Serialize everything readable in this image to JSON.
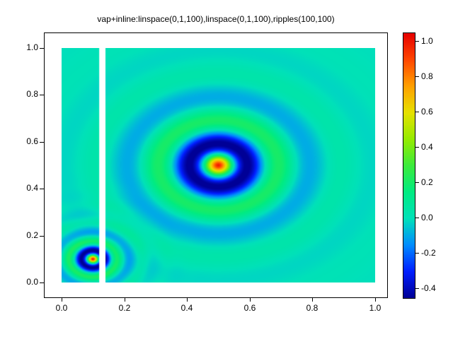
{
  "chart_data": {
    "type": "heatmap",
    "title": "vap+inline:linspace(0,1,100),linspace(0,1,100),ripples(100,100)",
    "x_label": "",
    "y_label": "",
    "x_range": [
      0,
      1
    ],
    "y_range": [
      0,
      1
    ],
    "grid_size": [
      100,
      100
    ],
    "x_tick_labels": [
      "0.0",
      "0.2",
      "0.4",
      "0.6",
      "0.8",
      "1.0"
    ],
    "y_tick_labels": [
      "0.0",
      "0.2",
      "0.4",
      "0.6",
      "0.8",
      "1.0"
    ],
    "colorbar_tick_labels": [
      "1.0",
      "0.8",
      "0.6",
      "0.4",
      "0.2",
      "0.0",
      "-0.2",
      "-0.4"
    ],
    "z_min": -0.45,
    "z_max": 1.05,
    "background_value": 0.0,
    "function": "z(x,y) = sum_i amplitude_i * cos(2*pi*r_i/wavelength_i) * exp(-r_i/decay_i), r_i = dist((x,y),(cx_i,cy_i))",
    "ripples": [
      {
        "cx": 0.5,
        "cy": 0.5,
        "amplitude": 1.0,
        "wavelength": 0.2,
        "decay": 0.125
      },
      {
        "cx": 0.1,
        "cy": 0.1,
        "amplitude": 1.0,
        "wavelength": 0.08,
        "decay": 0.05
      }
    ],
    "masked_band_x": [
      0.12,
      0.14
    ],
    "masked_band_color": "#ffffff",
    "colormap_stops": [
      [
        0.0,
        [
          0,
          0,
          150
        ]
      ],
      [
        0.1,
        [
          0,
          30,
          255
        ]
      ],
      [
        0.2,
        [
          0,
          140,
          255
        ]
      ],
      [
        0.3,
        [
          0,
          225,
          185
        ]
      ],
      [
        0.4,
        [
          0,
          235,
          130
        ]
      ],
      [
        0.5,
        [
          60,
          235,
          60
        ]
      ],
      [
        0.6,
        [
          150,
          235,
          0
        ]
      ],
      [
        0.7,
        [
          230,
          225,
          0
        ]
      ],
      [
        0.8,
        [
          255,
          160,
          0
        ]
      ],
      [
        0.9,
        [
          255,
          70,
          0
        ]
      ],
      [
        1.0,
        [
          230,
          0,
          0
        ]
      ]
    ],
    "legend_position": "colorbar-right",
    "grid": false
  }
}
